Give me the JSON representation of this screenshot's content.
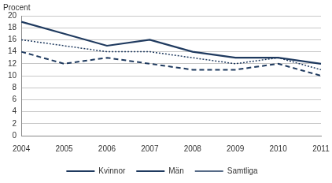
{
  "chart_data": {
    "type": "line",
    "y_label": "Procent",
    "categories": [
      "2004",
      "2005",
      "2006",
      "2007",
      "2008",
      "2009",
      "2010",
      "2011"
    ],
    "series": [
      {
        "name": "Kvinnor",
        "color": "#1f3a5f",
        "line_style": "solid",
        "values": [
          19,
          17,
          15,
          16,
          14,
          13,
          13,
          12
        ]
      },
      {
        "name": "Män",
        "color": "#1f3a5f",
        "line_style": "dashed",
        "values": [
          14,
          12,
          13,
          12,
          11,
          11,
          12,
          10
        ]
      },
      {
        "name": "Samtliga",
        "color": "#1f3a5f",
        "line_style": "dotted",
        "values": [
          16,
          15,
          14,
          14,
          13,
          12,
          13,
          11
        ]
      }
    ],
    "ylim": [
      0,
      20
    ],
    "yticks": [
      0,
      2,
      4,
      6,
      8,
      10,
      12,
      14,
      16,
      18,
      20
    ],
    "grid": true,
    "legend": "bottom"
  }
}
